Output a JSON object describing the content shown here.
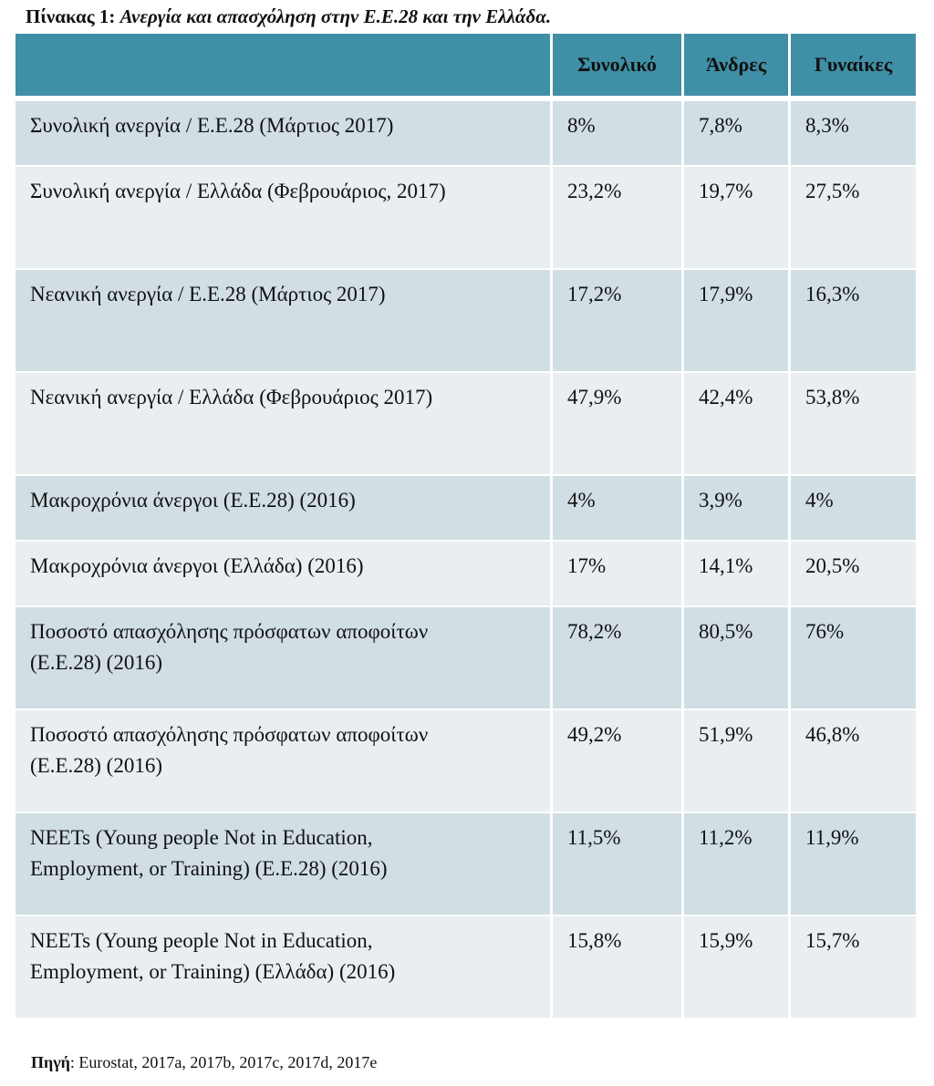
{
  "caption": {
    "label": "Πίνακας 1:",
    "title": "Ανεργία και απασχόληση στην Ε.Ε.28 και την Ελλάδα."
  },
  "table": {
    "columns": [
      "",
      "Συνολικό",
      "Άνδρες",
      "Γυναίκες"
    ],
    "rows": [
      {
        "label_lines": [
          "Συνολική ανεργία / Ε.Ε.28  (Μάρτιος 2017)"
        ],
        "total": "8%",
        "men": "7,8%",
        "women": "8,3%"
      },
      {
        "label_lines": [
          "Συνολική ανεργία / Ελλάδα (Φεβρουάριος, 2017)"
        ],
        "total": "23,2%",
        "men": "19,7%",
        "women": "27,5%"
      },
      {
        "label_lines": [
          "Νεανική ανεργία / Ε.Ε.28 (Μάρτιος 2017)"
        ],
        "total": "17,2%",
        "men": "17,9%",
        "women": "16,3%"
      },
      {
        "label_lines": [
          "Νεανική ανεργία / Ελλάδα (Φεβρουάριος 2017)"
        ],
        "total": "47,9%",
        "men": "42,4%",
        "women": "53,8%"
      },
      {
        "label_lines": [
          "Μακροχρόνια άνεργοι (Ε.Ε.28) (2016)"
        ],
        "total": "4%",
        "men": "3,9%",
        "women": "4%"
      },
      {
        "label_lines": [
          "Μακροχρόνια άνεργοι (Ελλάδα) (2016)"
        ],
        "total": "17%",
        "men": "14,1%",
        "women": "20,5%"
      },
      {
        "label_lines": [
          "Ποσοστό απασχόλησης πρόσφατων αποφοίτων",
          "(Ε.Ε.28) (2016)"
        ],
        "total": "78,2%",
        "men": "80,5%",
        "women": "76%"
      },
      {
        "label_lines": [
          "Ποσοστό απασχόλησης πρόσφατων αποφοίτων",
          "(Ε.Ε.28) (2016)"
        ],
        "total": "49,2%",
        "men": "51,9%",
        "women": "46,8%"
      },
      {
        "label_lines": [
          "NEETs (Young people Not in Education,",
          "Employment, or Training) (E.E.28) (2016)"
        ],
        "total": "11,5%",
        "men": "11,2%",
        "women": "11,9%"
      },
      {
        "label_lines": [
          "NEETs (Young people Not in Education,",
          "Employment, or Training) (Ελλάδα) (2016)"
        ],
        "total": "15,8%",
        "men": "15,9%",
        "women": "15,7%"
      }
    ]
  },
  "source": {
    "label": "Πηγή",
    "text": ": Eurostat, 2017a, 2017b, 2017c, 2017d, 2017e"
  }
}
